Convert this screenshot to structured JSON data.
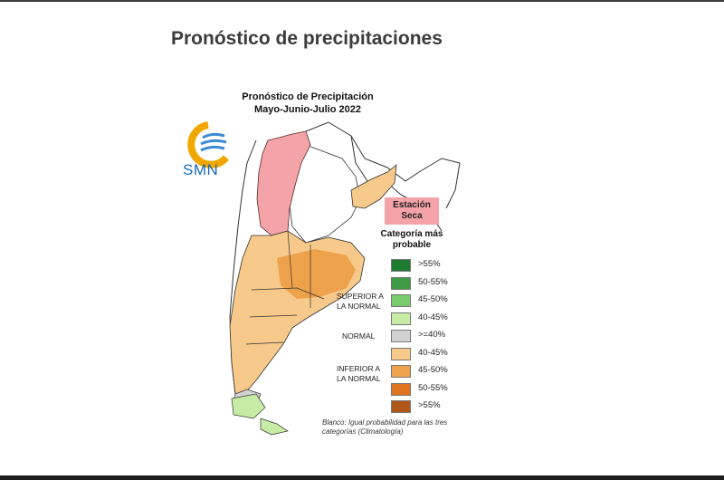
{
  "page": {
    "title": "Pronóstico de precipitaciones"
  },
  "map": {
    "title_line1": "Pronóstico de Precipitación",
    "title_line2": "Mayo-Junio-Julio 2022",
    "logo_text": "SMN",
    "station_label_line1": "Estación",
    "station_label_line2": "Seca",
    "station_color": "#f4a3a8",
    "legend_title_line1": "Categoría más",
    "legend_title_line2": "probable",
    "legend": [
      {
        "label": ">55%",
        "color": "#1e7a2e"
      },
      {
        "label": "50-55%",
        "color": "#3e9b44"
      },
      {
        "label": "45-50%",
        "color": "#7acb6d"
      },
      {
        "label": "40-45%",
        "color": "#c5eba4"
      },
      {
        "label": ">=40%",
        "color": "#d2d2d2"
      },
      {
        "label": "40-45%",
        "color": "#f7c98a"
      },
      {
        "label": "45-50%",
        "color": "#eda24b"
      },
      {
        "label": "50-55%",
        "color": "#e0731f"
      },
      {
        "label": ">55%",
        "color": "#b0581a"
      }
    ],
    "group_superior_line1": "SUPERIOR A",
    "group_superior_line2": "LA NORMAL",
    "group_normal": "NORMAL",
    "group_inferior_line1": "INFERIOR A",
    "group_inferior_line2": "LA NORMAL",
    "footnote": "Blanco: Igual probabilidad para las tres categorías (Climatología)"
  }
}
